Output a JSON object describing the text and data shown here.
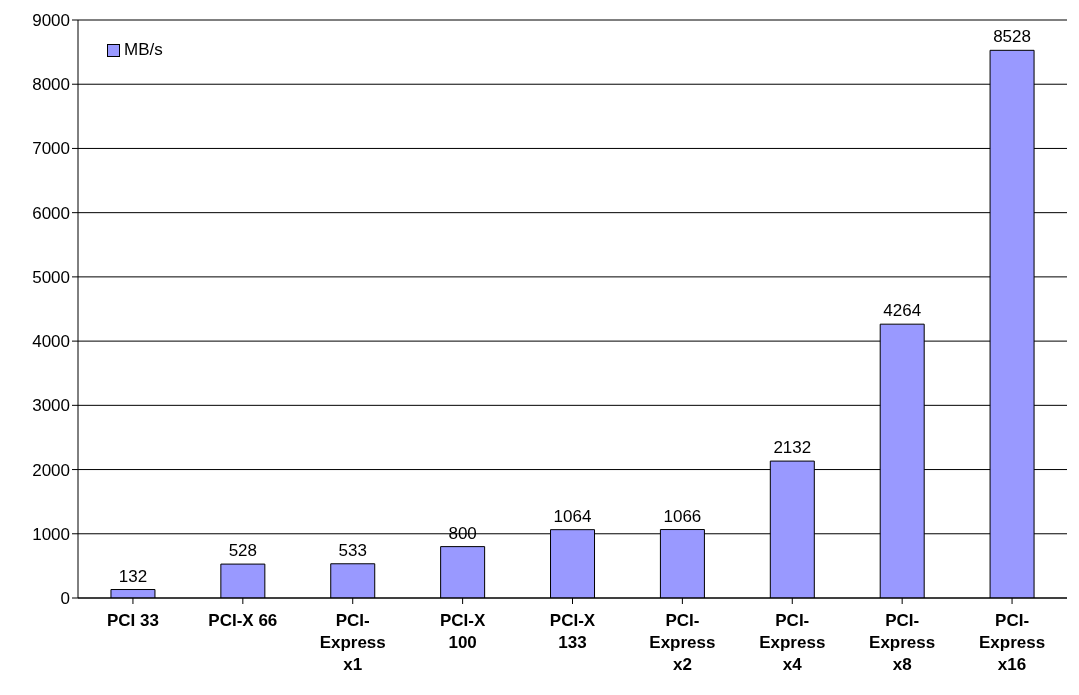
{
  "chart_data": {
    "type": "bar",
    "categories": [
      "PCI 33",
      "PCI-X 66",
      "PCI-Express x1",
      "PCI-X 100",
      "PCI-X 133",
      "PCI-Express x2",
      "PCI-Express x4",
      "PCI-Express x8",
      "PCI-Express x16"
    ],
    "series": [
      {
        "name": "MB/s",
        "color": "#9999ff",
        "values": [
          132,
          528,
          533,
          800,
          1064,
          1066,
          2132,
          4264,
          8528
        ]
      }
    ],
    "ylim": [
      0,
      9000
    ],
    "yticks": [
      0,
      1000,
      2000,
      3000,
      4000,
      5000,
      6000,
      7000,
      8000,
      9000
    ],
    "grid": "y",
    "legend": "top left",
    "data_labels": true
  }
}
